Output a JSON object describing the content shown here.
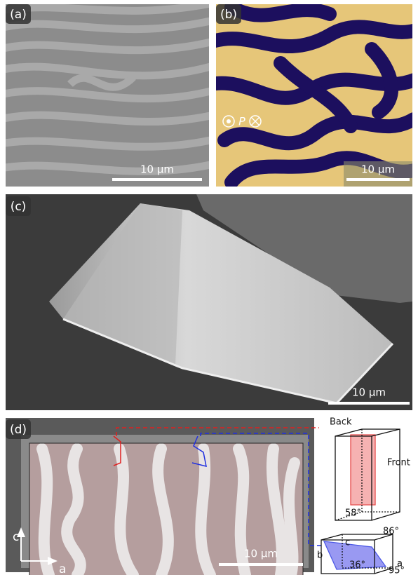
{
  "panels": [
    {
      "label": "(a)",
      "scale_bar": "10 µm"
    },
    {
      "label": "(b)",
      "scale_bar": "10 µm",
      "polarization": "P"
    },
    {
      "label": "(c)",
      "scale_bar": "10 µm"
    },
    {
      "label": "(d)",
      "scale_bar": "10 µm",
      "axes": [
        "c",
        "a"
      ]
    }
  ],
  "diagrams": [
    {
      "back": "Back",
      "front": "Front",
      "angles": [
        "58°",
        "86°"
      ]
    },
    {
      "axes": [
        "c",
        "b",
        "a"
      ],
      "angles": [
        "36°",
        "95°"
      ]
    }
  ]
}
